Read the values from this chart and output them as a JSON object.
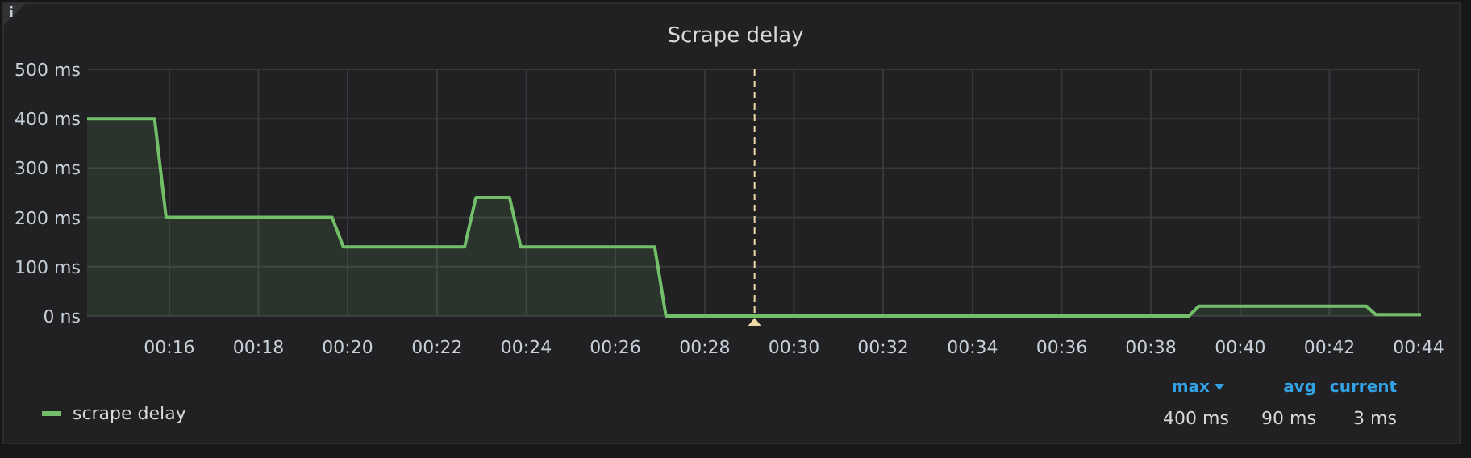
{
  "chart_data": {
    "type": "area",
    "title": "Scrape delay",
    "x": [
      0.236,
      0.2612,
      0.2655,
      0.3275,
      0.3317,
      0.377,
      0.3812,
      0.3938,
      0.398,
      0.448,
      0.4522,
      0.6475,
      0.6512,
      0.7138,
      0.7173,
      0.7342
    ],
    "series": [
      {
        "name": "scrape delay",
        "color": "#73bf69",
        "values": [
          400,
          400,
          200,
          200,
          140,
          140,
          240,
          240,
          140,
          140,
          0,
          0,
          20,
          20,
          3,
          3
        ]
      }
    ],
    "xlim": [
      0.236,
      0.7342
    ],
    "xticks": [
      {
        "value": 0.2667,
        "label": "00:16"
      },
      {
        "value": 0.3,
        "label": "00:18"
      },
      {
        "value": 0.3333,
        "label": "00:20"
      },
      {
        "value": 0.3667,
        "label": "00:22"
      },
      {
        "value": 0.4,
        "label": "00:24"
      },
      {
        "value": 0.4333,
        "label": "00:26"
      },
      {
        "value": 0.4667,
        "label": "00:28"
      },
      {
        "value": 0.5,
        "label": "00:30"
      },
      {
        "value": 0.5333,
        "label": "00:32"
      },
      {
        "value": 0.5667,
        "label": "00:34"
      },
      {
        "value": 0.6,
        "label": "00:36"
      },
      {
        "value": 0.6333,
        "label": "00:38"
      },
      {
        "value": 0.6667,
        "label": "00:40"
      },
      {
        "value": 0.7,
        "label": "00:42"
      },
      {
        "value": 0.7333,
        "label": "00:44"
      }
    ],
    "ylim": [
      0,
      500
    ],
    "yticks": [
      {
        "value": 0,
        "label": "0 ns"
      },
      {
        "value": 100,
        "label": "100 ms"
      },
      {
        "value": 200,
        "label": "200 ms"
      },
      {
        "value": 300,
        "label": "300 ms"
      },
      {
        "value": 400,
        "label": "400 ms"
      },
      {
        "value": 500,
        "label": "500 ms"
      }
    ],
    "ref_lines": [
      {
        "axis": "x",
        "value": 0.4853,
        "label": null,
        "color": "#f0d9a8",
        "line_style": "dashed"
      }
    ],
    "annotations": [
      "max",
      "avg",
      "current",
      "400 ms",
      "90 ms",
      "3 ms"
    ],
    "grid": true,
    "legend": "bottom left"
  }
}
